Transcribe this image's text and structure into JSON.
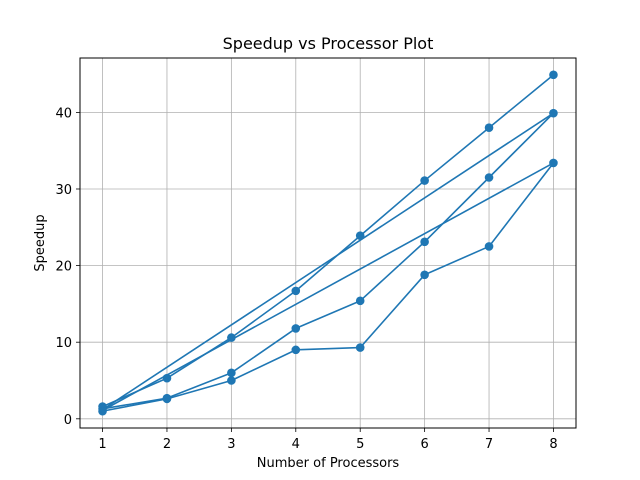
{
  "chart_data": {
    "type": "line",
    "title": "Speedup vs Processor Plot",
    "xlabel": "Number of Processors",
    "ylabel": "Speedup",
    "xlim": [
      0.65,
      8.35
    ],
    "ylim": [
      -1.2,
      47.1
    ],
    "xticks": [
      "1",
      "2",
      "3",
      "4",
      "5",
      "6",
      "7",
      "8"
    ],
    "yticks": [
      "0",
      "10",
      "20",
      "30",
      "40"
    ],
    "grid": true,
    "color": "#1f77b4",
    "series": [
      {
        "x": [
          1,
          2,
          3,
          4,
          5,
          6,
          7,
          8
        ],
        "values": [
          1.6,
          5.3,
          10.6,
          16.7,
          23.9,
          31.1,
          38.0,
          44.9
        ]
      },
      {
        "x": [
          1,
          2,
          3,
          4,
          5,
          6,
          7,
          8
        ],
        "values": [
          1.3,
          2.7,
          6.0,
          11.8,
          15.4,
          23.1,
          31.5,
          39.9
        ]
      },
      {
        "x": [
          1,
          2,
          3,
          4,
          5,
          6,
          7,
          8
        ],
        "values": [
          1.0,
          2.6,
          5.0,
          9.0,
          9.3,
          18.8,
          22.5,
          33.4
        ]
      }
    ],
    "extra_lines": [
      {
        "x": [
          1,
          8
        ],
        "values": [
          1.2,
          39.9
        ]
      },
      {
        "x": [
          1,
          8
        ],
        "values": [
          1.1,
          33.4
        ]
      }
    ]
  }
}
